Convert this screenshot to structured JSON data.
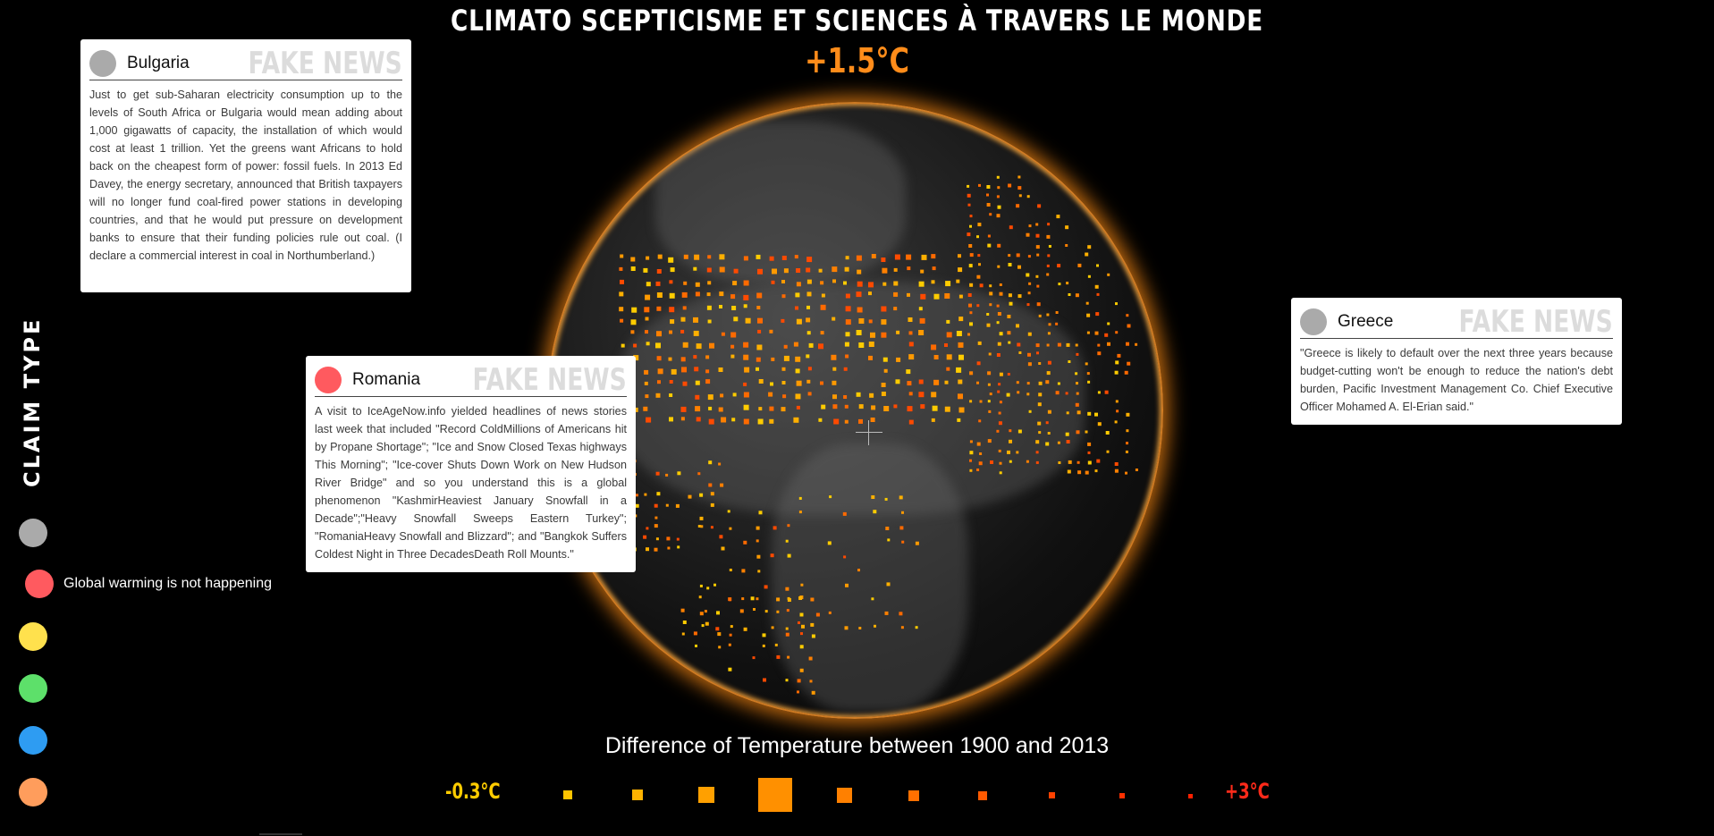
{
  "header": {
    "title": "CLIMATO SCEPTICISME ET SCIENCES À TRAVERS LE MONDE",
    "temperature": "+1.5°C"
  },
  "cards": [
    {
      "country": "Bulgaria",
      "stamp": "FAKE NEWS",
      "dot_color": "#aaaaaa",
      "text": "Just to get sub-Saharan electricity consumption up to the levels of South Africa or Bulgaria would mean adding about 1,000 gigawatts of capacity, the installation of which would cost at least 1 trillion. Yet the greens want Africans to hold back on the cheapest form of power: fossil fuels. In 2013 Ed Davey, the energy secretary, announced that British taxpayers will no longer fund coal-fired power stations in developing countries, and that he would put pressure on development banks to ensure that their funding policies rule out coal. (I declare a commercial interest in coal in Northumberland.)"
    },
    {
      "country": "Romania",
      "stamp": "FAKE NEWS",
      "dot_color": "#ff5a5f",
      "text": "A visit to IceAgeNow.info yielded headlines of news stories last week that included \"Record ColdMillions of Americans hit by Propane Shortage\"; \"Ice and Snow Closed Texas highways This Morning\"; \"Ice-cover Shuts Down Work on New Hudson River Bridge\" and so you understand this is a global phenomenon \"KashmirHeaviest January Snowfall in a Decade\";\"Heavy Snowfall Sweeps Eastern Turkey\"; \"RomaniaHeavy Snowfall and Blizzard\"; and \"Bangkok Suffers Coldest Night in Three DecadesDeath Roll Mounts.\""
    },
    {
      "country": "Greece",
      "stamp": "FAKE NEWS",
      "dot_color": "#aaaaaa",
      "text": "\"Greece is likely to default over the next three years because budget-cutting won't be enough to reduce the nation's debt burden, Pacific Investment Management Co. Chief Executive Officer Mohamed A. El-Erian said.\""
    }
  ],
  "claim_type": {
    "label": "CLAIM TYPE",
    "items": [
      {
        "color": "#aaaaaa",
        "label": ""
      },
      {
        "color": "#ff5a5f",
        "label": "Global warming is not happening"
      },
      {
        "color": "#ffe14d",
        "label": ""
      },
      {
        "color": "#5de06a",
        "label": ""
      },
      {
        "color": "#2e9cf2",
        "label": ""
      },
      {
        "color": "#ff9d5c",
        "label": ""
      }
    ]
  },
  "legend": {
    "title": "Difference of Temperature between 1900 and 2013",
    "min_label": "-0.3°C",
    "max_label": "+3°C",
    "min_color": "#ffcc00",
    "max_color": "#ff2a1a",
    "steps": [
      {
        "color": "#ffc400"
      },
      {
        "color": "#ffb300"
      },
      {
        "color": "#ffa000"
      },
      {
        "color": "#ff9000"
      },
      {
        "color": "#ff8000"
      },
      {
        "color": "#ff7000"
      },
      {
        "color": "#ff5a00"
      },
      {
        "color": "#ff4200"
      },
      {
        "color": "#ff3000"
      },
      {
        "color": "#ff2000"
      }
    ]
  }
}
